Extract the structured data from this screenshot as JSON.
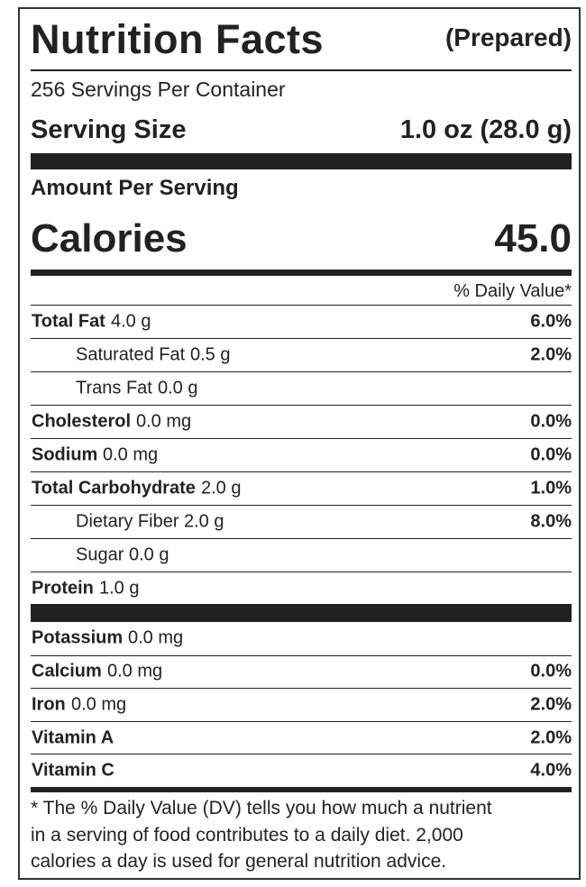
{
  "header": {
    "title": "Nutrition Facts",
    "subtitle": "(Prepared)",
    "servings": "256 Servings Per Container",
    "serving_size_label": "Serving Size",
    "serving_size": "1.0 oz (28.0 g)",
    "amount_per_serving": "Amount Per Serving",
    "calories_label": "Calories",
    "calories": "45.0",
    "daily_value_heading": "% Daily Value*"
  },
  "nutrients": [
    {
      "name": "Total Fat",
      "amount": "4.0 g",
      "dv": "6.0%"
    },
    {
      "name": "Saturated Fat",
      "amount": "0.5 g",
      "dv": "2.0%",
      "indent": true
    },
    {
      "name": "Trans Fat",
      "amount": "0.0 g",
      "indent": true
    },
    {
      "name": "Cholesterol",
      "amount": "0.0 mg",
      "dv": "0.0%"
    },
    {
      "name": "Sodium",
      "amount": "0.0 mg",
      "dv": "0.0%"
    },
    {
      "name": "Total Carbohydrate",
      "amount": "2.0 g",
      "dv": "1.0%"
    },
    {
      "name": "Dietary Fiber",
      "amount": "2.0 g",
      "dv": "8.0%",
      "indent": true
    },
    {
      "name": "Sugar",
      "amount": "0.0 g",
      "indent": true
    },
    {
      "name": "Protein",
      "amount": "1.0 g"
    }
  ],
  "minerals": [
    {
      "name": "Potassium",
      "amount": "0.0 mg"
    },
    {
      "name": "Calcium",
      "amount": "0.0 mg",
      "dv": "0.0%"
    },
    {
      "name": "Iron",
      "amount": "0.0 mg",
      "dv": "2.0%"
    },
    {
      "name": "Vitamin A",
      "dv": "2.0%"
    },
    {
      "name": "Vitamin C",
      "dv": "4.0%"
    }
  ],
  "footnote": [
    "* The % Daily Value (DV) tells you how much a nutrient",
    "in a serving of food contributes to a daily diet. 2,000",
    "calories a day is used for general nutrition advice."
  ]
}
